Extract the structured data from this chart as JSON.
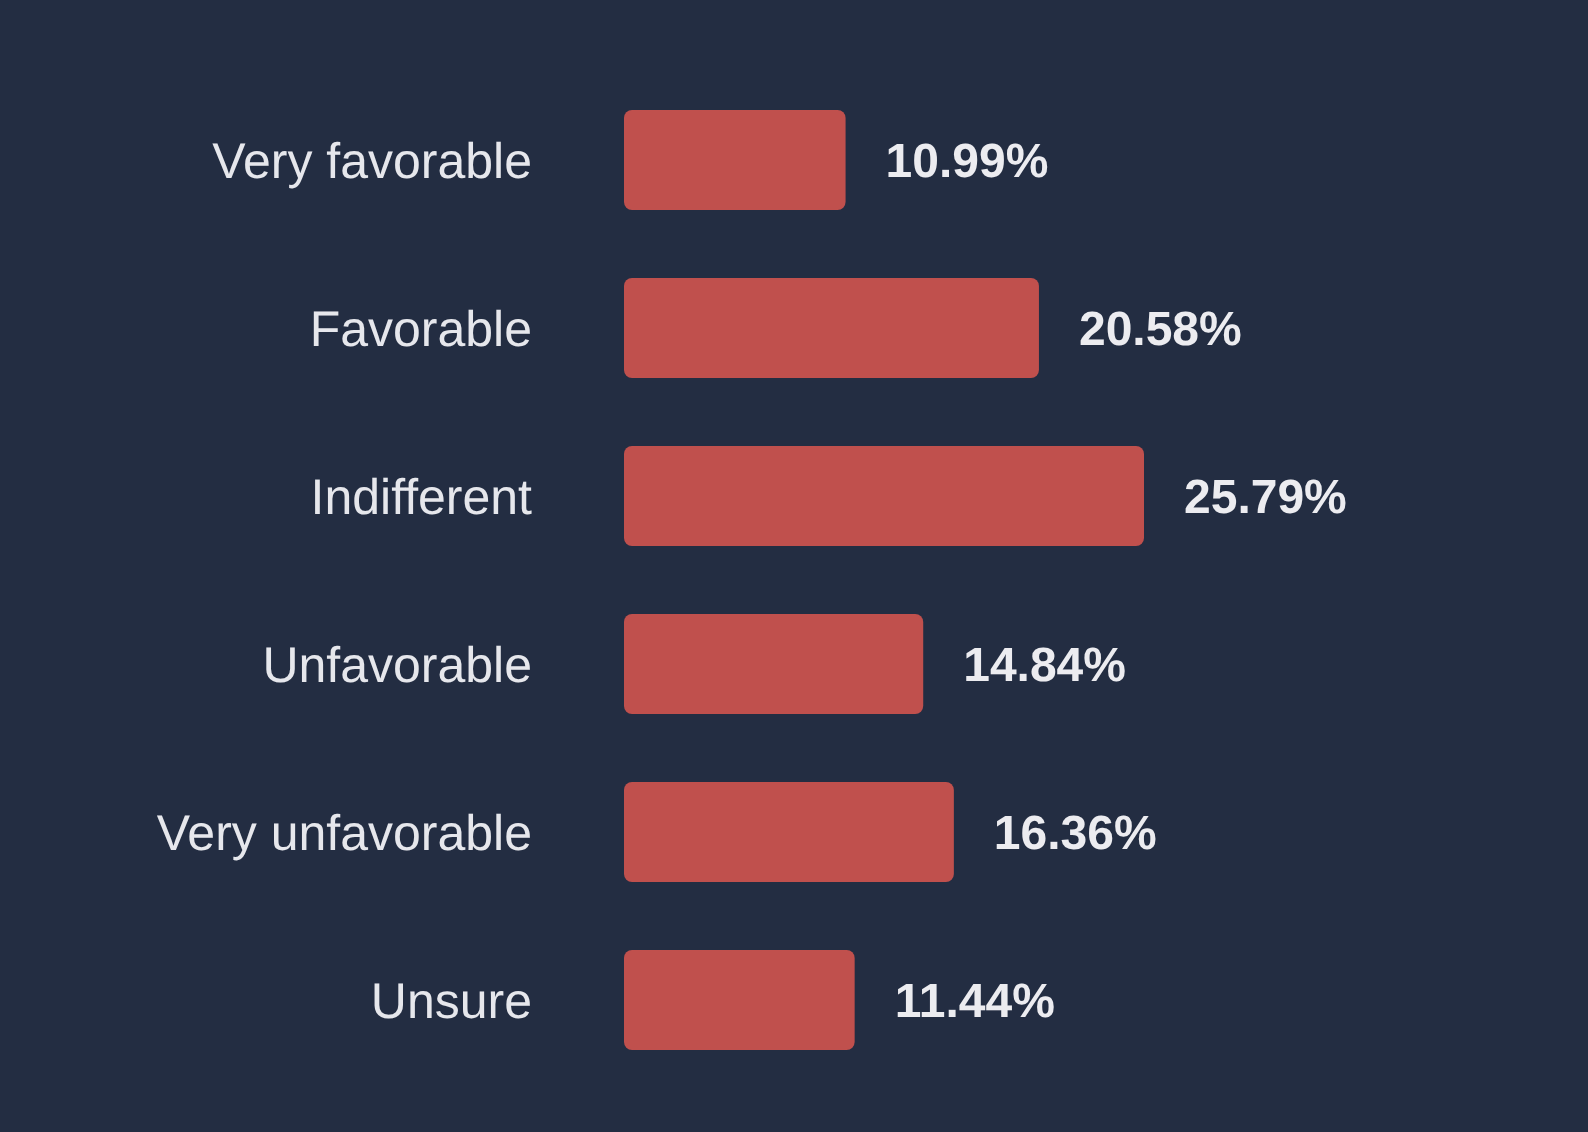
{
  "chart_data": {
    "type": "bar",
    "orientation": "horizontal",
    "categories": [
      "Very favorable",
      "Favorable",
      "Indifferent",
      "Unfavorable",
      "Very unfavorable",
      "Unsure"
    ],
    "values": [
      10.99,
      20.58,
      25.79,
      14.84,
      16.36,
      11.44
    ],
    "value_labels": [
      "10.99%",
      "20.58%",
      "25.79%",
      "14.84%",
      "16.36%",
      "11.44%"
    ],
    "color": "#c0504d",
    "grid": false,
    "legend": false
  }
}
